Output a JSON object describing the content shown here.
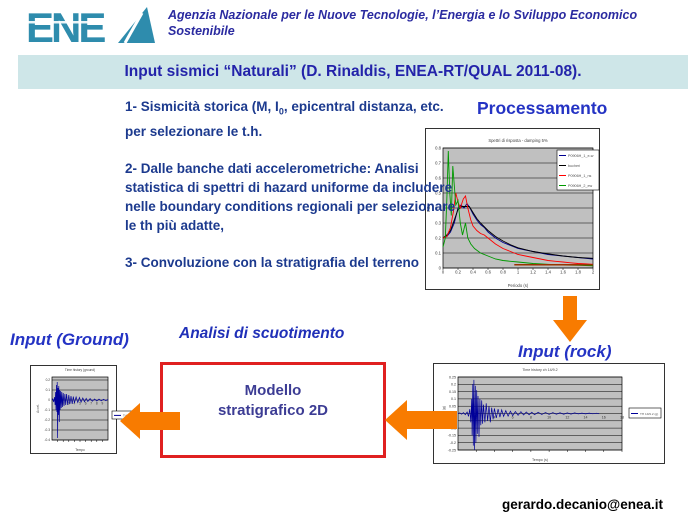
{
  "header": {
    "logo_text": "ENEA",
    "agency_line1": "Agenzia Nazionale per le Nuove Tecnologie, l’Energia e lo Sviluppo Economico",
    "agency_line2": "Sostenibile"
  },
  "banner": {
    "title": "Input sismici “Naturali” (D. Rinaldis, ENEA-RT/QUAL 2011-08)."
  },
  "content": {
    "item1_prefix": "1- Sismicità storica (M, I",
    "item1_subscript": "0",
    "item1_suffix": ", epicentral distanza, etc. per selezionare le t.h.",
    "item2": "2- Dalle banche dati accelerometriche: Analisi statistica di spettri di hazard uniforme  da includere nelle boundary conditions regionali per selezionare le th più adatte,",
    "item3": "3- Convoluzione con la stratigrafia del terreno",
    "processamento_label": "Processamento",
    "input_rock_label": "Input (rock)",
    "input_ground_label": "Input (Ground)",
    "analisi_label": "Analisi di scuotimento",
    "modello_line1": "Modello",
    "modello_line2": "stratigrafico 2D",
    "email": "gerardo.decanio@enea.it"
  },
  "colors": {
    "logo_teal": "#2e8cad",
    "header_blue": "#2b2ba0",
    "banner_bg": "#cee6e8",
    "banner_text": "#2323aa",
    "body_text": "#1c3a8e",
    "title_blue": "#2433c4",
    "modello_text": "#3c3c94",
    "box_border_red": "#e02020",
    "arrow_orange": "#f87b00",
    "plot_bg": "#c0c0c0",
    "trace_blue": "#000099"
  },
  "chart_data": [
    {
      "id": "spectra",
      "type": "line",
      "title": "Spettri di risposta - damping 5%",
      "xlabel": "Periodo (s)",
      "ylabel": "PSa",
      "xlim": [
        0,
        2
      ],
      "ylim": [
        0,
        0.8
      ],
      "xticks": [
        0,
        0.2,
        0.4,
        0.6,
        0.8,
        1,
        1.2,
        1.4,
        1.6,
        1.8,
        2
      ],
      "yticks": [
        0,
        0.1,
        0.2,
        0.3,
        0.4,
        0.5,
        0.6,
        0.7,
        0.8
      ],
      "grid": "horizontal",
      "legend_position": "inside-right",
      "series": [
        {
          "name": "P0906H_1_e-w",
          "color": "#000090",
          "points": [
            [
              0,
              0.2
            ],
            [
              0.05,
              0.21
            ],
            [
              0.1,
              0.24
            ],
            [
              0.15,
              0.3
            ],
            [
              0.2,
              0.4
            ],
            [
              0.24,
              0.42
            ],
            [
              0.28,
              0.4
            ],
            [
              0.32,
              0.43
            ],
            [
              0.36,
              0.4
            ],
            [
              0.4,
              0.36
            ],
            [
              0.45,
              0.32
            ],
            [
              0.5,
              0.29
            ],
            [
              0.55,
              0.27
            ],
            [
              0.6,
              0.24
            ],
            [
              0.7,
              0.2
            ],
            [
              0.8,
              0.17
            ],
            [
              0.9,
              0.15
            ],
            [
              1,
              0.13
            ],
            [
              1.1,
              0.12
            ],
            [
              1.2,
              0.11
            ],
            [
              1.3,
              0.1
            ],
            [
              1.4,
              0.09
            ],
            [
              1.5,
              0.085
            ],
            [
              1.6,
              0.08
            ],
            [
              1.7,
              0.075
            ],
            [
              1.8,
              0.07
            ],
            [
              1.9,
              0.065
            ],
            [
              2,
              0.06
            ]
          ]
        },
        {
          "name": "bucheri",
          "color": "#000000",
          "points": [
            [
              0,
              0.2
            ],
            [
              0.05,
              0.22
            ],
            [
              0.1,
              0.25
            ],
            [
              0.15,
              0.32
            ],
            [
              0.2,
              0.39
            ],
            [
              0.25,
              0.41
            ],
            [
              0.3,
              0.41
            ],
            [
              0.35,
              0.41
            ],
            [
              0.4,
              0.37
            ],
            [
              0.45,
              0.33
            ],
            [
              0.5,
              0.3
            ],
            [
              0.6,
              0.25
            ],
            [
              0.7,
              0.21
            ],
            [
              0.8,
              0.18
            ],
            [
              0.9,
              0.155
            ],
            [
              1,
              0.135
            ],
            [
              1.2,
              0.11
            ],
            [
              1.4,
              0.095
            ],
            [
              1.6,
              0.08
            ],
            [
              1.8,
              0.07
            ],
            [
              2,
              0.065
            ]
          ]
        },
        {
          "name": "P0906H_1_ns",
          "color": "#ff0000",
          "points": [
            [
              0,
              0.2
            ],
            [
              0.05,
              0.21
            ],
            [
              0.1,
              0.27
            ],
            [
              0.14,
              0.38
            ],
            [
              0.17,
              0.5
            ],
            [
              0.2,
              0.44
            ],
            [
              0.23,
              0.4
            ],
            [
              0.27,
              0.46
            ],
            [
              0.3,
              0.48
            ],
            [
              0.33,
              0.4
            ],
            [
              0.37,
              0.32
            ],
            [
              0.4,
              0.28
            ],
            [
              0.45,
              0.25
            ],
            [
              0.5,
              0.23
            ],
            [
              0.55,
              0.22
            ],
            [
              0.6,
              0.2
            ],
            [
              0.7,
              0.16
            ],
            [
              0.8,
              0.13
            ],
            [
              0.9,
              0.11
            ],
            [
              1,
              0.09
            ],
            [
              1.1,
              0.08
            ],
            [
              1.2,
              0.07
            ],
            [
              1.3,
              0.06
            ],
            [
              1.4,
              0.05
            ],
            [
              1.5,
              0.045
            ],
            [
              1.6,
              0.04
            ],
            [
              1.7,
              0.035
            ],
            [
              1.8,
              0.03
            ],
            [
              1.9,
              0.028
            ],
            [
              2,
              0.025
            ]
          ]
        },
        {
          "name": "P0906H_2_ew",
          "color": "#009900",
          "points": [
            [
              0,
              0.14
            ],
            [
              0.03,
              0.2
            ],
            [
              0.05,
              0.45
            ],
            [
              0.07,
              0.78
            ],
            [
              0.09,
              0.5
            ],
            [
              0.11,
              0.35
            ],
            [
              0.13,
              0.68
            ],
            [
              0.15,
              0.55
            ],
            [
              0.17,
              0.42
            ],
            [
              0.2,
              0.45
            ],
            [
              0.23,
              0.3
            ],
            [
              0.26,
              0.22
            ],
            [
              0.3,
              0.3
            ],
            [
              0.33,
              0.2
            ],
            [
              0.37,
              0.16
            ],
            [
              0.42,
              0.13
            ],
            [
              0.5,
              0.1
            ],
            [
              0.6,
              0.08
            ],
            [
              0.7,
              0.06
            ],
            [
              0.8,
              0.05
            ],
            [
              0.9,
              0.045
            ],
            [
              1,
              0.04
            ],
            [
              1.2,
              0.03
            ],
            [
              1.4,
              0.025
            ],
            [
              1.6,
              0.02
            ],
            [
              1.8,
              0.018
            ],
            [
              2,
              0.015
            ]
          ]
        },
        {
          "name": "pga",
          "color": "#993300",
          "width": 1.5,
          "in_legend": false,
          "points": [
            [
              0.95,
              0.022
            ],
            [
              2,
              0.022
            ]
          ]
        }
      ]
    },
    {
      "id": "rock",
      "type": "line",
      "title": "Time history ch 14/9.2",
      "xlabel": "Tempo (s)",
      "ylabel": "Accel. (g)",
      "xlim": [
        0,
        18
      ],
      "ylim": [
        -0.25,
        0.25
      ],
      "xticks": [
        2,
        4,
        6,
        8,
        10,
        12,
        14,
        16,
        18
      ],
      "yticks": [
        0.25,
        0.2,
        0.15,
        0.1,
        0.05,
        0,
        -0.05,
        -0.1,
        -0.15,
        -0.2,
        -0.25
      ],
      "grid": "horizontal",
      "legend_position": "outside-right",
      "series": [
        {
          "name": "TH 14/9.2 (g)",
          "color": "#000099",
          "width": 0.7,
          "points": [
            [
              0,
              0
            ],
            [
              0.2,
              0.004
            ],
            [
              0.4,
              -0.005
            ],
            [
              0.6,
              0.006
            ],
            [
              0.8,
              -0.008
            ],
            [
              1,
              0.01
            ],
            [
              1.15,
              -0.02
            ],
            [
              1.3,
              0.03
            ],
            [
              1.4,
              -0.06
            ],
            [
              1.5,
              0.1
            ],
            [
              1.55,
              -0.15
            ],
            [
              1.62,
              0.2
            ],
            [
              1.68,
              -0.22
            ],
            [
              1.75,
              0.23
            ],
            [
              1.82,
              -0.25
            ],
            [
              1.9,
              0.19
            ],
            [
              1.97,
              -0.2
            ],
            [
              2.05,
              0.16
            ],
            [
              2.12,
              -0.14
            ],
            [
              2.2,
              0.12
            ],
            [
              2.3,
              -0.16
            ],
            [
              2.4,
              0.1
            ],
            [
              2.5,
              -0.08
            ],
            [
              2.6,
              0.09
            ],
            [
              2.7,
              -0.07
            ],
            [
              2.8,
              0.06
            ],
            [
              2.95,
              -0.06
            ],
            [
              3.1,
              0.07
            ],
            [
              3.25,
              -0.05
            ],
            [
              3.4,
              0.05
            ],
            [
              3.55,
              -0.06
            ],
            [
              3.7,
              0.04
            ],
            [
              3.85,
              -0.04
            ],
            [
              4,
              0.035
            ],
            [
              4.2,
              -0.03
            ],
            [
              4.4,
              0.03
            ],
            [
              4.6,
              -0.025
            ],
            [
              4.8,
              0.025
            ],
            [
              5,
              -0.02
            ],
            [
              5.25,
              0.02
            ],
            [
              5.5,
              -0.018
            ],
            [
              5.75,
              0.016
            ],
            [
              6,
              -0.015
            ],
            [
              6.3,
              0.014
            ],
            [
              6.6,
              -0.012
            ],
            [
              6.9,
              0.012
            ],
            [
              7.2,
              -0.01
            ],
            [
              7.5,
              0.01
            ],
            [
              7.8,
              -0.009
            ],
            [
              8.1,
              0.009
            ],
            [
              8.4,
              -0.008
            ],
            [
              8.8,
              0.008
            ],
            [
              9.2,
              -0.007
            ],
            [
              9.6,
              0.007
            ],
            [
              10,
              -0.006
            ],
            [
              10.4,
              0.006
            ],
            [
              10.8,
              -0.005
            ],
            [
              11.2,
              0.005
            ],
            [
              11.6,
              -0.005
            ],
            [
              12,
              0.004
            ],
            [
              12.4,
              -0.004
            ],
            [
              12.8,
              0.004
            ],
            [
              13.2,
              -0.003
            ],
            [
              13.6,
              0.003
            ],
            [
              14,
              -0.003
            ],
            [
              14.4,
              0.003
            ],
            [
              14.8,
              -0.002
            ],
            [
              15.2,
              0.002
            ],
            [
              15.5,
              -0.002
            ]
          ]
        }
      ]
    },
    {
      "id": "ground",
      "type": "line",
      "title": "Time history (ground)",
      "xlabel": "Tempo",
      "ylabel": "Accel.",
      "xlim": [
        0,
        10
      ],
      "ylim": [
        -0.4,
        0.23
      ],
      "xticks": [
        1,
        2,
        3,
        4,
        5,
        6,
        7,
        8,
        9
      ],
      "yticks": [
        0.2,
        0.1,
        0,
        -0.1,
        -0.2,
        -0.3,
        -0.4
      ],
      "grid": "horizontal",
      "legend_position": "outside-right",
      "series": [
        {
          "name": "TH g",
          "color": "#000099",
          "width": 0.7,
          "points": [
            [
              0,
              0
            ],
            [
              0.15,
              0.01
            ],
            [
              0.3,
              -0.02
            ],
            [
              0.45,
              0.03
            ],
            [
              0.55,
              -0.05
            ],
            [
              0.65,
              0.08
            ],
            [
              0.72,
              -0.1
            ],
            [
              0.8,
              0.15
            ],
            [
              0.87,
              -0.12
            ],
            [
              0.93,
              0.18
            ],
            [
              1,
              -0.38
            ],
            [
              1.08,
              0.12
            ],
            [
              1.15,
              -0.15
            ],
            [
              1.22,
              0.14
            ],
            [
              1.3,
              -0.22
            ],
            [
              1.38,
              0.1
            ],
            [
              1.45,
              -0.1
            ],
            [
              1.55,
              0.09
            ],
            [
              1.65,
              -0.08
            ],
            [
              1.75,
              0.08
            ],
            [
              1.85,
              -0.07
            ],
            [
              2,
              0.07
            ],
            [
              2.15,
              -0.06
            ],
            [
              2.3,
              0.06
            ],
            [
              2.45,
              -0.05
            ],
            [
              2.6,
              0.06
            ],
            [
              2.8,
              -0.05
            ],
            [
              3,
              0.05
            ],
            [
              3.2,
              -0.04
            ],
            [
              3.4,
              0.04
            ],
            [
              3.6,
              -0.04
            ],
            [
              3.8,
              0.035
            ],
            [
              4,
              -0.03
            ],
            [
              4.3,
              0.03
            ],
            [
              4.6,
              -0.025
            ],
            [
              4.9,
              0.025
            ],
            [
              5.2,
              -0.02
            ],
            [
              5.5,
              0.02
            ],
            [
              5.8,
              -0.018
            ],
            [
              6.1,
              0.016
            ],
            [
              6.4,
              -0.015
            ],
            [
              6.8,
              0.014
            ],
            [
              7.2,
              -0.012
            ],
            [
              7.6,
              0.01
            ],
            [
              8,
              -0.01
            ],
            [
              8.4,
              0.009
            ],
            [
              8.8,
              -0.008
            ],
            [
              9.2,
              0.007
            ],
            [
              9.6,
              -0.006
            ],
            [
              10,
              0.005
            ]
          ]
        }
      ]
    }
  ]
}
